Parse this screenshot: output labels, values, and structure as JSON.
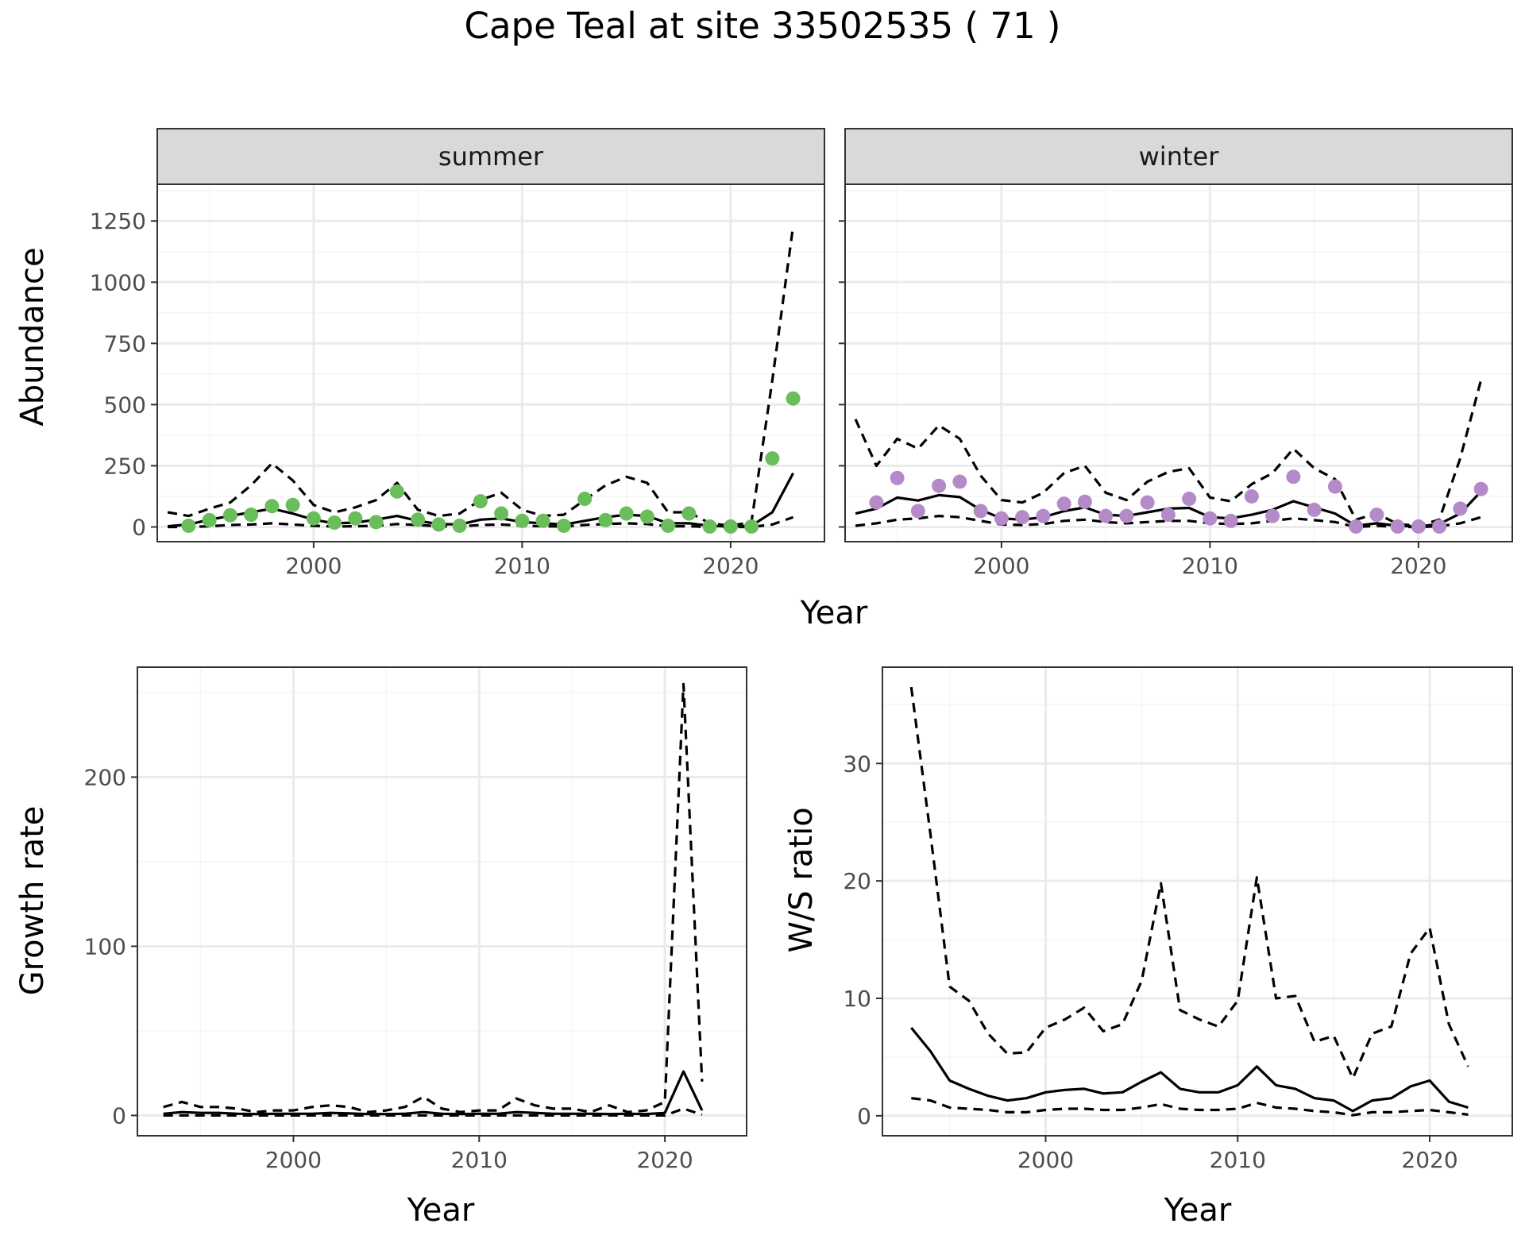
{
  "title": "Cape Teal at site 33502535 ( 71 )",
  "colors": {
    "summer_points": "#6ABD5B",
    "winter_points": "#B48BC8",
    "line": "#000000",
    "grid_major": "#EBEBEB",
    "grid_minor": "#F5F5F5",
    "strip_bg": "#D9D9D9",
    "panel_border": "#333333"
  },
  "chart_data": [
    {
      "type": "line",
      "facet": "summer",
      "xlabel": "Year",
      "ylabel": "Abundance",
      "xlim": [
        1992.5,
        2024.5
      ],
      "ylim": [
        -60,
        1400
      ],
      "xticks": [
        2000,
        2010,
        2020
      ],
      "yticks": [
        0,
        250,
        500,
        750,
        1000,
        1250
      ],
      "grid": true,
      "x": [
        1993,
        1994,
        1995,
        1996,
        1997,
        1998,
        1999,
        2000,
        2001,
        2002,
        2003,
        2004,
        2005,
        2006,
        2007,
        2008,
        2009,
        2010,
        2011,
        2012,
        2013,
        2014,
        2015,
        2016,
        2017,
        2018,
        2019,
        2020,
        2021,
        2022,
        2023
      ],
      "series": [
        {
          "role": "median",
          "style": "solid",
          "values": [
            3,
            10,
            30,
            45,
            60,
            75,
            55,
            30,
            15,
            18,
            30,
            45,
            25,
            12,
            10,
            30,
            35,
            20,
            15,
            10,
            25,
            40,
            50,
            45,
            15,
            15,
            5,
            2,
            5,
            60,
            220
          ]
        },
        {
          "role": "upper",
          "style": "dashed",
          "values": [
            60,
            45,
            75,
            100,
            170,
            260,
            190,
            90,
            60,
            80,
            110,
            180,
            70,
            45,
            55,
            110,
            140,
            70,
            45,
            50,
            110,
            170,
            205,
            180,
            60,
            60,
            15,
            5,
            20,
            600,
            1230
          ]
        },
        {
          "role": "lower",
          "style": "dashed",
          "values": [
            0,
            0,
            3,
            8,
            10,
            15,
            10,
            5,
            2,
            3,
            5,
            12,
            8,
            3,
            2,
            8,
            10,
            5,
            3,
            2,
            8,
            12,
            15,
            12,
            3,
            3,
            0,
            0,
            0,
            10,
            40
          ]
        }
      ],
      "points": {
        "x": [
          1994,
          1995,
          1996,
          1997,
          1998,
          1999,
          2000,
          2001,
          2002,
          2003,
          2004,
          2005,
          2006,
          2007,
          2008,
          2009,
          2010,
          2011,
          2012,
          2013,
          2014,
          2015,
          2016,
          2017,
          2018,
          2019,
          2020,
          2021,
          2022,
          2023
        ],
        "values": [
          5,
          28,
          48,
          50,
          85,
          90,
          35,
          18,
          35,
          20,
          145,
          30,
          10,
          5,
          105,
          55,
          25,
          25,
          5,
          115,
          28,
          55,
          42,
          5,
          55,
          2,
          2,
          2,
          280,
          525
        ]
      }
    },
    {
      "type": "line",
      "facet": "winter",
      "xlabel": "Year",
      "ylabel": "Abundance",
      "xlim": [
        1992.5,
        2024.5
      ],
      "ylim": [
        -60,
        1400
      ],
      "xticks": [
        2000,
        2010,
        2020
      ],
      "yticks": [
        0,
        250,
        500,
        750,
        1000,
        1250
      ],
      "grid": true,
      "x": [
        1993,
        1994,
        1995,
        1996,
        1997,
        1998,
        1999,
        2000,
        2001,
        2002,
        2003,
        2004,
        2005,
        2006,
        2007,
        2008,
        2009,
        2010,
        2011,
        2012,
        2013,
        2014,
        2015,
        2016,
        2017,
        2018,
        2019,
        2020,
        2021,
        2022,
        2023
      ],
      "series": [
        {
          "role": "median",
          "style": "solid",
          "values": [
            55,
            75,
            120,
            108,
            130,
            122,
            70,
            35,
            30,
            40,
            65,
            80,
            50,
            45,
            60,
            75,
            78,
            40,
            35,
            50,
            70,
            105,
            80,
            55,
            5,
            15,
            5,
            2,
            12,
            55,
            145
          ]
        },
        {
          "role": "upper",
          "style": "dashed",
          "values": [
            440,
            250,
            360,
            320,
            415,
            360,
            210,
            110,
            100,
            140,
            220,
            250,
            140,
            110,
            185,
            225,
            240,
            120,
            105,
            175,
            220,
            320,
            240,
            195,
            30,
            55,
            12,
            5,
            30,
            280,
            600
          ]
        },
        {
          "role": "lower",
          "style": "dashed",
          "values": [
            5,
            15,
            30,
            35,
            45,
            40,
            25,
            10,
            8,
            12,
            25,
            30,
            20,
            15,
            20,
            25,
            25,
            15,
            12,
            15,
            25,
            35,
            28,
            20,
            0,
            5,
            0,
            0,
            3,
            15,
            40
          ]
        }
      ],
      "points": {
        "x": [
          1994,
          1995,
          1996,
          1997,
          1998,
          1999,
          2000,
          2001,
          2002,
          2003,
          2004,
          2005,
          2006,
          2007,
          2008,
          2009,
          2010,
          2011,
          2012,
          2013,
          2014,
          2015,
          2016,
          2017,
          2018,
          2019,
          2020,
          2021,
          2022,
          2023
        ],
        "values": [
          100,
          200,
          65,
          168,
          185,
          65,
          35,
          40,
          45,
          95,
          103,
          45,
          45,
          100,
          50,
          115,
          35,
          25,
          125,
          45,
          205,
          70,
          165,
          2,
          50,
          2,
          2,
          2,
          75,
          155
        ]
      }
    },
    {
      "type": "line",
      "xlabel": "Year",
      "ylabel": "Growth rate",
      "xlim": [
        1991.6,
        2024.4
      ],
      "ylim": [
        -12,
        265
      ],
      "xticks": [
        2000,
        2010,
        2020
      ],
      "yticks": [
        0,
        100,
        200
      ],
      "grid": true,
      "x": [
        1993,
        1994,
        1995,
        1996,
        1997,
        1998,
        1999,
        2000,
        2001,
        2002,
        2003,
        2004,
        2005,
        2006,
        2007,
        2008,
        2009,
        2010,
        2011,
        2012,
        2013,
        2014,
        2015,
        2016,
        2017,
        2018,
        2019,
        2020,
        2021,
        2022
      ],
      "series": [
        {
          "role": "median",
          "style": "solid",
          "values": [
            1,
            2,
            1.5,
            1.5,
            1,
            0.8,
            1,
            1,
            1,
            1.5,
            1.2,
            0.8,
            0.8,
            1,
            2,
            1,
            0.8,
            1,
            1,
            2,
            1.5,
            1,
            1,
            1,
            0.8,
            1,
            0.8,
            1.5,
            26,
            3
          ]
        },
        {
          "role": "upper",
          "style": "dashed",
          "values": [
            5,
            8,
            5,
            5,
            4,
            2,
            3,
            3,
            5,
            6,
            5,
            2,
            3,
            5,
            11,
            4,
            2,
            3,
            3,
            10,
            6,
            4,
            4,
            2,
            6,
            2,
            3,
            8,
            255,
            20
          ]
        },
        {
          "role": "lower",
          "style": "dashed",
          "values": [
            0,
            0,
            0,
            0,
            0,
            0,
            0,
            0,
            0,
            0,
            0,
            0,
            0,
            0,
            0,
            0,
            0,
            0,
            0,
            0,
            0,
            0,
            0,
            0,
            0,
            0,
            0,
            0,
            4,
            0.5
          ]
        }
      ]
    },
    {
      "type": "line",
      "xlabel": "Year",
      "ylabel": "W/S ratio",
      "xlim": [
        1991.5,
        2024.3
      ],
      "ylim": [
        -1.7,
        38.2
      ],
      "xticks": [
        2000,
        2010,
        2020
      ],
      "yticks": [
        0,
        10,
        20,
        30
      ],
      "grid": true,
      "x": [
        1993,
        1994,
        1995,
        1996,
        1997,
        1998,
        1999,
        2000,
        2001,
        2002,
        2003,
        2004,
        2005,
        2006,
        2007,
        2008,
        2009,
        2010,
        2011,
        2012,
        2013,
        2014,
        2015,
        2016,
        2017,
        2018,
        2019,
        2020,
        2021,
        2022
      ],
      "series": [
        {
          "role": "median",
          "style": "solid",
          "values": [
            7.5,
            5.5,
            3.0,
            2.3,
            1.7,
            1.3,
            1.5,
            2.0,
            2.2,
            2.3,
            1.9,
            2.0,
            2.9,
            3.7,
            2.3,
            2.0,
            2.0,
            2.6,
            4.2,
            2.6,
            2.3,
            1.5,
            1.3,
            0.4,
            1.3,
            1.5,
            2.5,
            3.0,
            1.2,
            0.7
          ]
        },
        {
          "role": "upper",
          "style": "dashed",
          "values": [
            36.5,
            24,
            11,
            9.8,
            7,
            5.3,
            5.4,
            7.5,
            8.2,
            9.2,
            7.2,
            7.8,
            11.5,
            19.8,
            9,
            8.2,
            7.6,
            9.8,
            20.3,
            10,
            10.2,
            6.3,
            6.8,
            3.2,
            7,
            7.6,
            13.8,
            16,
            7.8,
            4.2
          ]
        },
        {
          "role": "lower",
          "style": "dashed",
          "values": [
            1.5,
            1.3,
            0.7,
            0.6,
            0.5,
            0.3,
            0.3,
            0.5,
            0.6,
            0.6,
            0.5,
            0.5,
            0.7,
            1.0,
            0.6,
            0.5,
            0.5,
            0.6,
            1.1,
            0.7,
            0.6,
            0.4,
            0.3,
            0.05,
            0.3,
            0.3,
            0.4,
            0.5,
            0.3,
            0.1
          ]
        }
      ]
    }
  ]
}
